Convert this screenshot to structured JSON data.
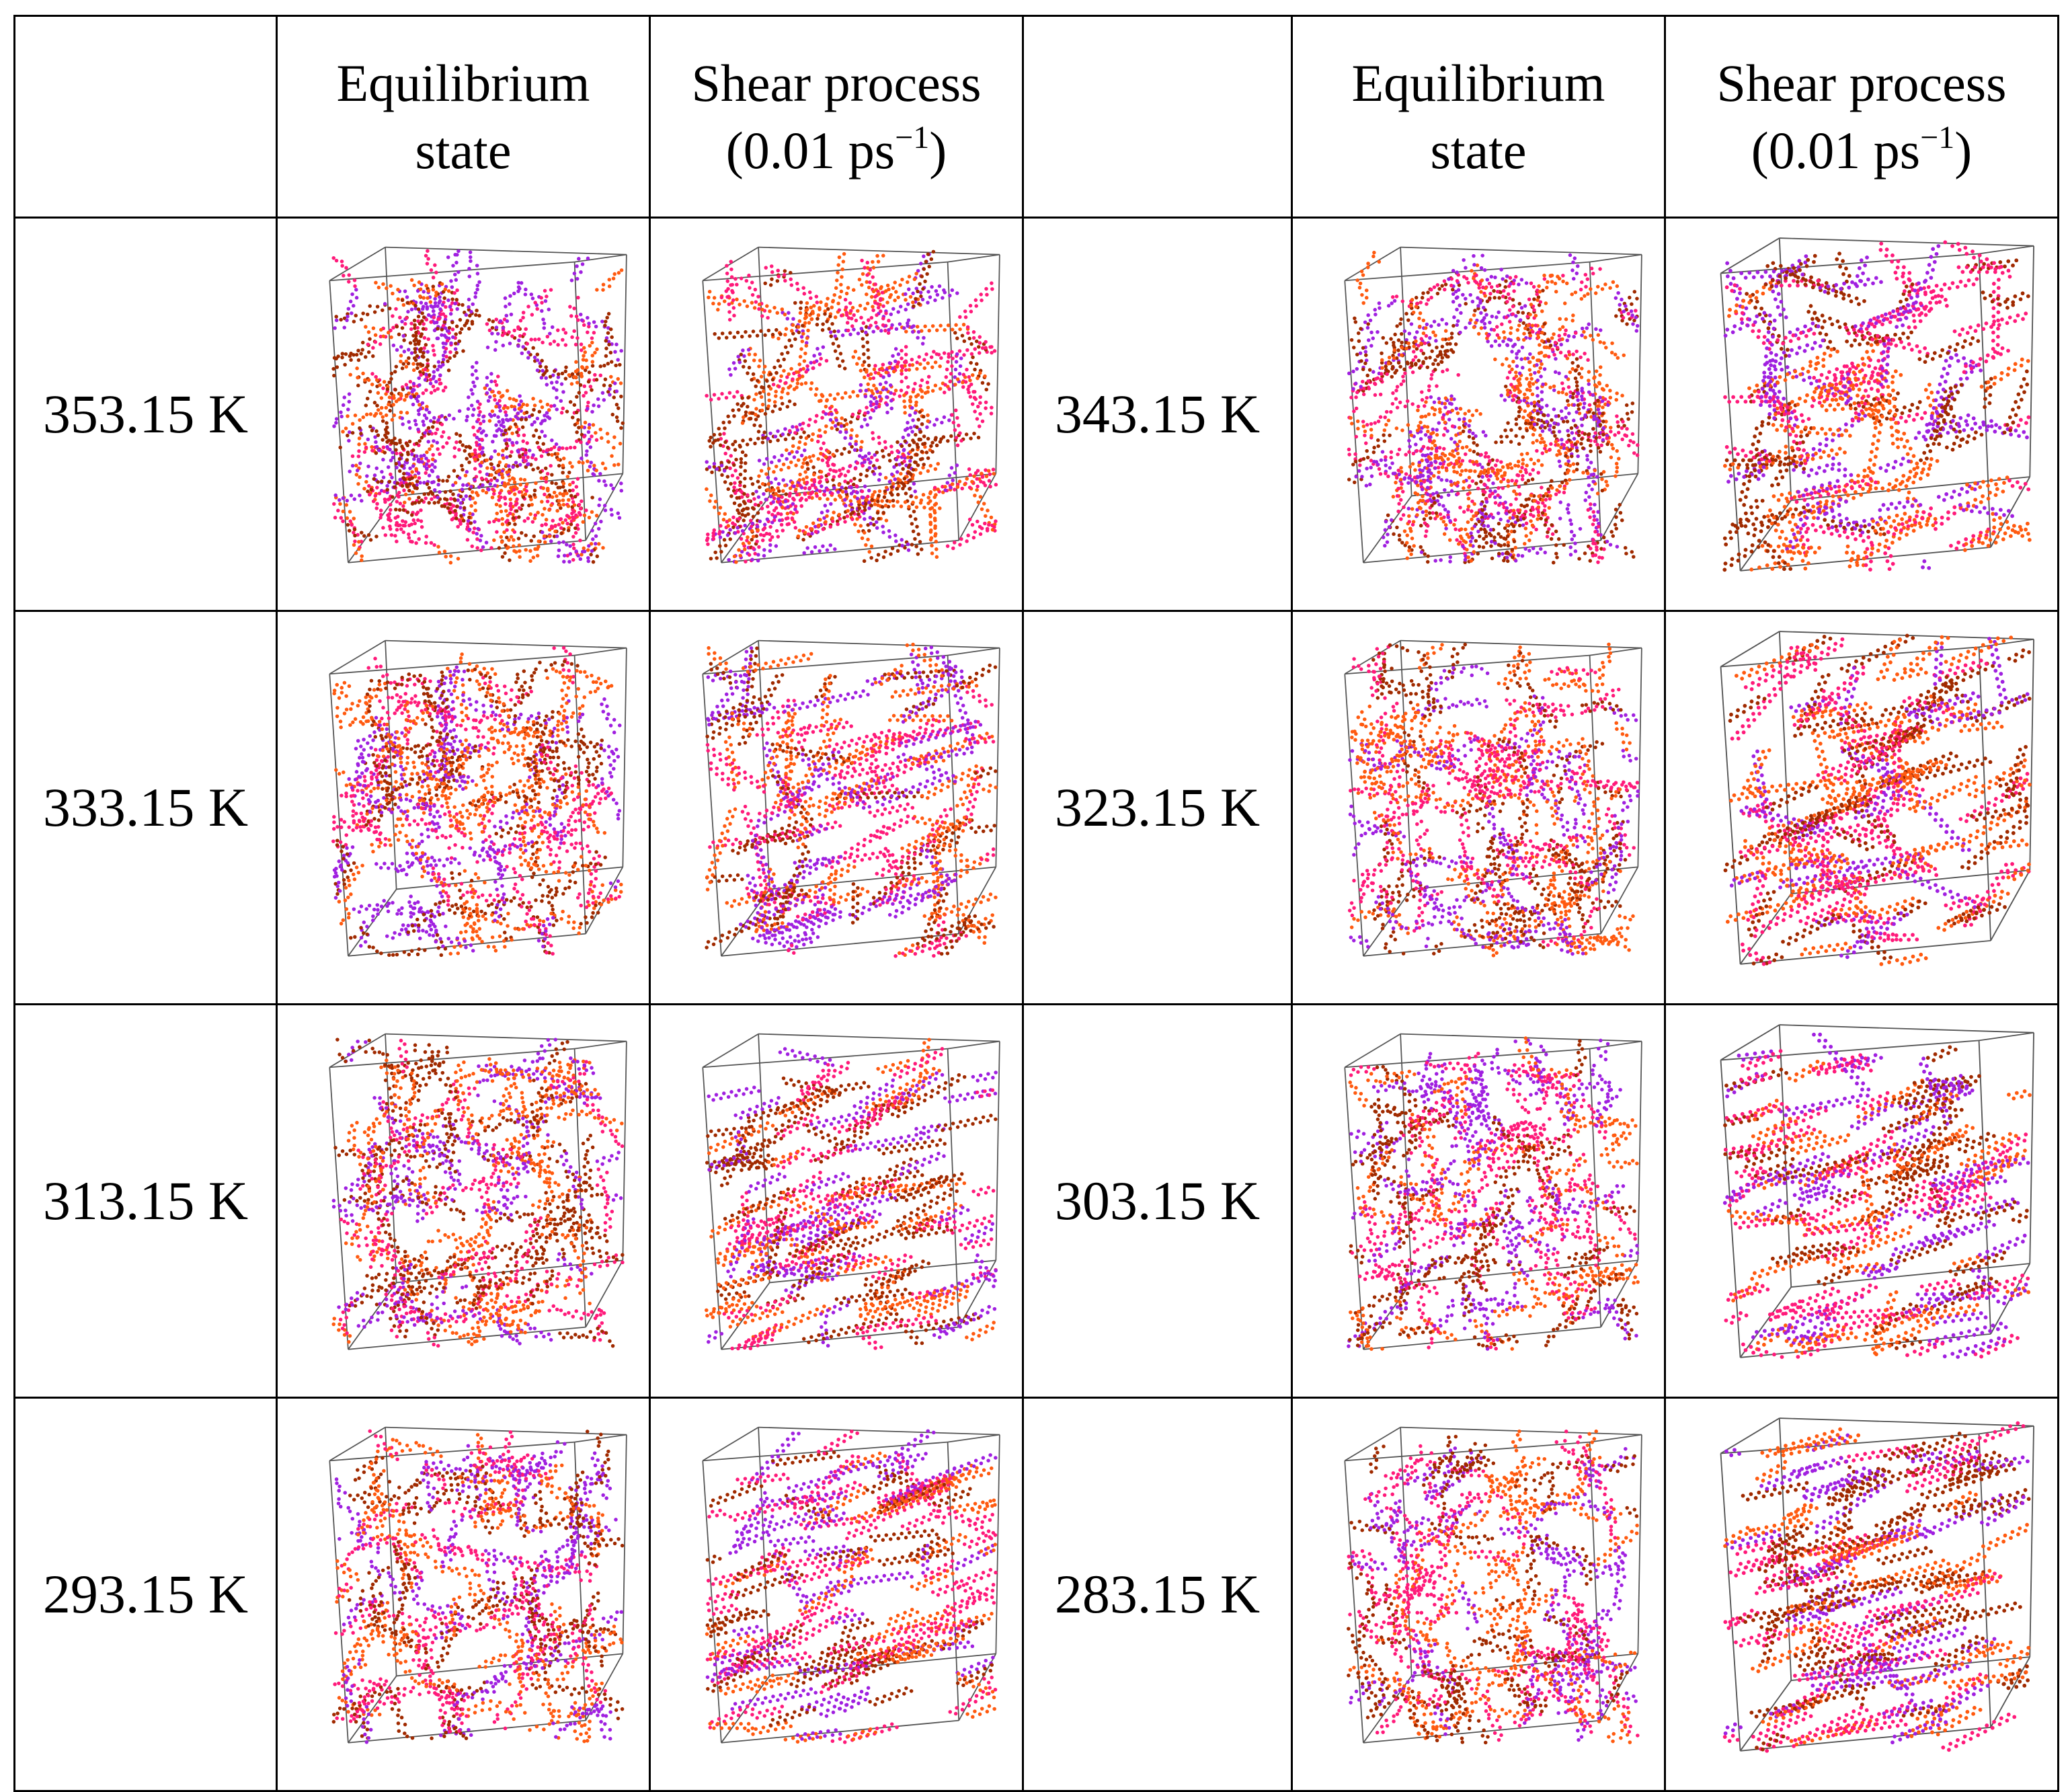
{
  "headers": {
    "equilibrium": [
      "Equilibrium",
      "state"
    ],
    "shear": [
      "Shear process",
      "(0.01 ps",
      "−1",
      ")"
    ]
  },
  "rows": [
    {
      "left_temp": "353.15 K",
      "right_temp": "343.15 K"
    },
    {
      "left_temp": "333.15 K",
      "right_temp": "323.15 K"
    },
    {
      "left_temp": "313.15 K",
      "right_temp": "303.15 K"
    },
    {
      "left_temp": "293.15 K",
      "right_temp": "283.15 K"
    }
  ],
  "colors": {
    "purple": "#a020e0",
    "magenta": "#ff1a7a",
    "orange": "#ff5a10",
    "brown": "#a02a00",
    "cube_edge": "#555555"
  }
}
